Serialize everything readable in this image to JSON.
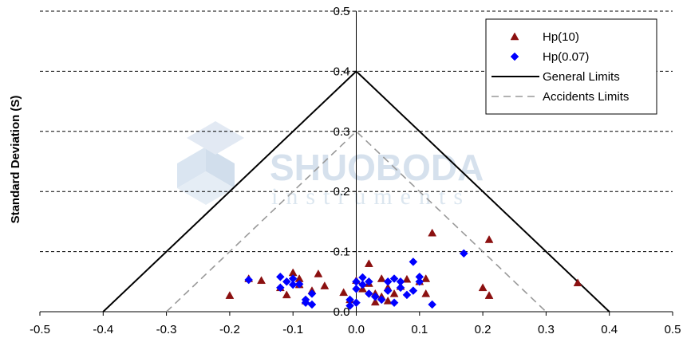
{
  "chart_data": {
    "type": "scatter",
    "ylabel": "Standard Deviation (S)",
    "xlim": [
      -0.5,
      0.5
    ],
    "ylim": [
      0,
      0.5
    ],
    "x_ticks": [
      "-0.5",
      "-0.4",
      "-0.3",
      "-0.2",
      "-0.1",
      "0.0",
      "0.1",
      "0.2",
      "0.3",
      "0.4",
      "0.5"
    ],
    "y_ticks": [
      "0.0",
      "0.1",
      "0.2",
      "0.3",
      "0.4",
      "0.5"
    ],
    "grid": "horizontal dashed",
    "legend_position": "top-right",
    "series": [
      {
        "name": "Hp(10)",
        "marker": "triangle",
        "color": "#8b1010",
        "points": [
          [
            -0.2,
            0.027
          ],
          [
            -0.17,
            0.055
          ],
          [
            -0.15,
            0.052
          ],
          [
            -0.12,
            0.04
          ],
          [
            -0.11,
            0.028
          ],
          [
            -0.1,
            0.065
          ],
          [
            -0.09,
            0.055
          ],
          [
            -0.09,
            0.045
          ],
          [
            -0.08,
            0.018
          ],
          [
            -0.07,
            0.035
          ],
          [
            -0.06,
            0.063
          ],
          [
            -0.05,
            0.043
          ],
          [
            -0.02,
            0.032
          ],
          [
            -0.01,
            0.02
          ],
          [
            0.0,
            0.052
          ],
          [
            0.01,
            0.038
          ],
          [
            0.02,
            0.08
          ],
          [
            0.02,
            0.047
          ],
          [
            0.03,
            0.03
          ],
          [
            0.03,
            0.016
          ],
          [
            0.04,
            0.025
          ],
          [
            0.04,
            0.055
          ],
          [
            0.05,
            0.018
          ],
          [
            0.05,
            0.04
          ],
          [
            0.06,
            0.03
          ],
          [
            0.07,
            0.042
          ],
          [
            0.08,
            0.054
          ],
          [
            0.1,
            0.05
          ],
          [
            0.11,
            0.055
          ],
          [
            0.11,
            0.03
          ],
          [
            0.12,
            0.131
          ],
          [
            0.2,
            0.04
          ],
          [
            0.21,
            0.12
          ],
          [
            0.21,
            0.027
          ],
          [
            0.35,
            0.048
          ]
        ]
      },
      {
        "name": "Hp(0.07)",
        "marker": "diamond",
        "color": "#0000ff",
        "points": [
          [
            -0.17,
            0.053
          ],
          [
            -0.12,
            0.058
          ],
          [
            -0.12,
            0.04
          ],
          [
            -0.11,
            0.05
          ],
          [
            -0.1,
            0.055
          ],
          [
            -0.1,
            0.045
          ],
          [
            -0.09,
            0.046
          ],
          [
            -0.08,
            0.015
          ],
          [
            -0.08,
            0.02
          ],
          [
            -0.07,
            0.012
          ],
          [
            -0.07,
            0.03
          ],
          [
            -0.01,
            0.02
          ],
          [
            -0.01,
            0.01
          ],
          [
            0.0,
            0.05
          ],
          [
            0.0,
            0.038
          ],
          [
            0.0,
            0.015
          ],
          [
            0.01,
            0.045
          ],
          [
            0.01,
            0.057
          ],
          [
            0.02,
            0.05
          ],
          [
            0.02,
            0.03
          ],
          [
            0.03,
            0.025
          ],
          [
            0.04,
            0.02
          ],
          [
            0.05,
            0.035
          ],
          [
            0.05,
            0.05
          ],
          [
            0.06,
            0.055
          ],
          [
            0.06,
            0.015
          ],
          [
            0.07,
            0.04
          ],
          [
            0.07,
            0.05
          ],
          [
            0.08,
            0.028
          ],
          [
            0.09,
            0.035
          ],
          [
            0.09,
            0.083
          ],
          [
            0.1,
            0.058
          ],
          [
            0.1,
            0.05
          ],
          [
            0.12,
            0.012
          ],
          [
            0.17,
            0.097
          ]
        ]
      },
      {
        "name": "General Limits",
        "line": "solid",
        "color": "#000000",
        "points": [
          [
            -0.4,
            0.0
          ],
          [
            0.0,
            0.4
          ],
          [
            0.4,
            0.0
          ]
        ]
      },
      {
        "name": "Accidents Limits",
        "line": "dashed",
        "color": "#999999",
        "points": [
          [
            -0.3,
            0.0
          ],
          [
            0.0,
            0.3
          ],
          [
            0.3,
            0.0
          ]
        ]
      }
    ]
  },
  "watermark": {
    "brand": "SHUOBODA",
    "sub": "instruments"
  }
}
